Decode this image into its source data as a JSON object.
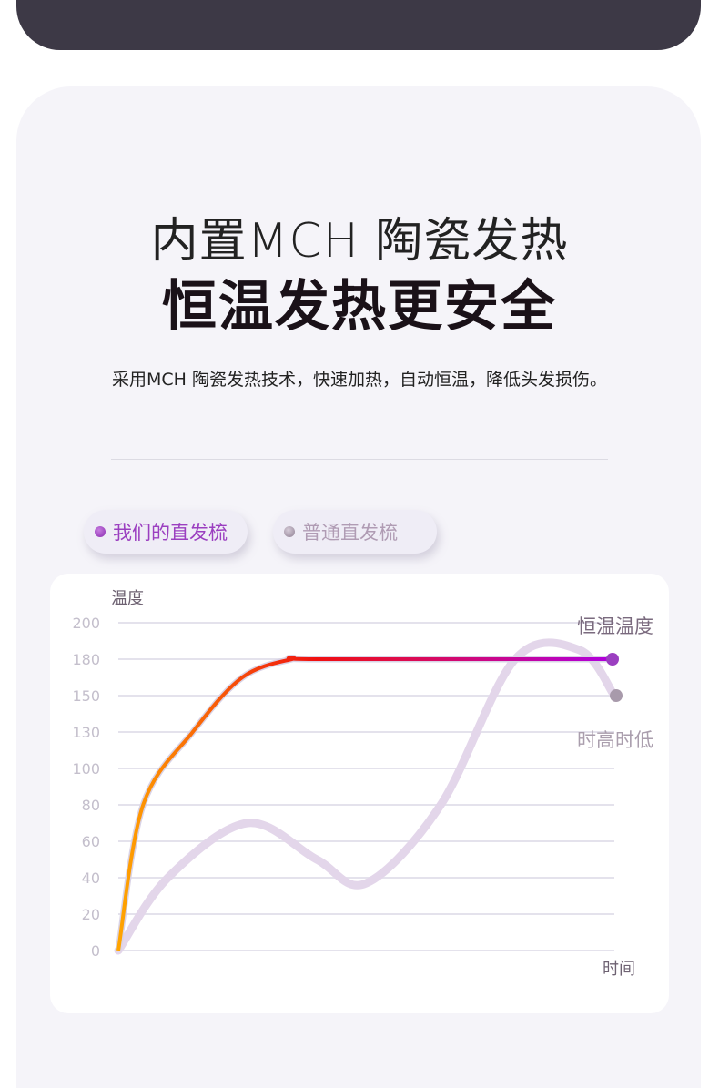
{
  "header": {
    "title_line1": "内置MCH 陶瓷发热",
    "title_line2": "恒温发热更安全",
    "subtitle": "采用MCH 陶瓷发热技术，快速加热，自动恒温，降低头发损伤。"
  },
  "legend": [
    {
      "label": "我们的直发梳",
      "color": "#9b3fc0"
    },
    {
      "label": "普通直发梳",
      "color": "#b09cb4"
    }
  ],
  "chart_data": {
    "type": "line",
    "ylabel": "温度",
    "xlabel": "时间",
    "yticks": [
      0,
      20,
      40,
      60,
      80,
      100,
      130,
      150,
      180,
      200
    ],
    "ylim": [
      0,
      200
    ],
    "grid": true,
    "series": [
      {
        "name": "我们的直发梳",
        "annotation": "恒温温度",
        "color_start": "#ffa500",
        "color_mid": "#f01010",
        "color_end": "#b000e0",
        "x": [
          0,
          5,
          15,
          25,
          35,
          40,
          100
        ],
        "y": [
          0,
          80,
          130,
          165,
          180,
          180,
          180
        ]
      },
      {
        "name": "普通直发梳",
        "annotation": "时高时低",
        "color": "#e3d6ea",
        "x": [
          0,
          10,
          26,
          40,
          50,
          65,
          80,
          93,
          100
        ],
        "y": [
          0,
          40,
          70,
          50,
          37,
          80,
          180,
          185,
          150
        ]
      }
    ]
  }
}
